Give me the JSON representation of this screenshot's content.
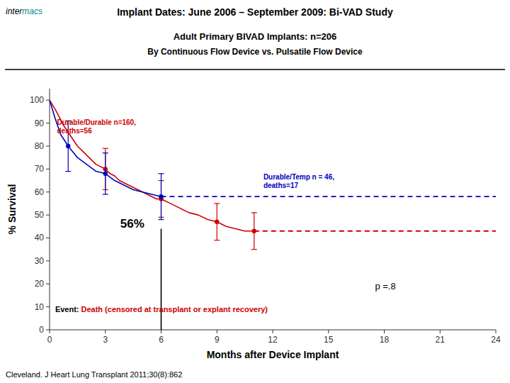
{
  "chart_data": {
    "type": "line",
    "title": "Implant Dates:  June 2006 – September 2009: Bi-VAD Study",
    "subtitle": [
      "Adult Primary BIVAD Implants: n=206",
      "By Continuous Flow Device vs. Pulsatile Flow Device"
    ],
    "x_label": "Months after Device Implant",
    "y_label": "% Survival",
    "xlim": [
      0,
      24
    ],
    "ylim": [
      0,
      105
    ],
    "xticks": [
      0,
      3,
      6,
      9,
      12,
      15,
      18,
      21,
      24
    ],
    "yticks": [
      0,
      10,
      20,
      30,
      40,
      50,
      60,
      70,
      80,
      90,
      100
    ],
    "grid": false,
    "series": [
      {
        "type": "line",
        "color": "#cc0000",
        "x": [
          0,
          0.15,
          0.3,
          0.5,
          0.75,
          1,
          1.25,
          1.5,
          1.75,
          2,
          2.25,
          2.5,
          2.75,
          3,
          3.25,
          3.5,
          3.75,
          4,
          4.25,
          4.5,
          4.75,
          5,
          5.25,
          5.5,
          5.75,
          6,
          6.5,
          7,
          7.5,
          8,
          8.5,
          9,
          9.5,
          10,
          10.5,
          11
        ],
        "values": [
          100,
          98,
          96,
          93,
          89,
          86,
          83,
          80,
          78,
          76,
          74,
          72,
          71,
          70,
          68,
          67,
          65,
          64,
          63,
          62,
          61,
          60,
          59,
          58,
          57,
          57,
          55,
          53,
          51,
          50,
          48,
          47,
          45,
          44,
          43,
          43
        ]
      },
      {
        "type": "scatter",
        "color": "#cc0000",
        "marker": "circle",
        "x": [
          3,
          6,
          9,
          11
        ],
        "values": [
          70,
          57,
          47,
          43
        ],
        "error_low": [
          9,
          8,
          8,
          8
        ],
        "error_high": [
          9,
          8,
          8,
          8
        ]
      },
      {
        "type": "line",
        "color": "#0000bb",
        "x": [
          0,
          0.3,
          0.6,
          1,
          1.5,
          2,
          2.5,
          3,
          3.5,
          4,
          4.5,
          5,
          5.5,
          6
        ],
        "values": [
          100,
          92,
          85,
          80,
          75,
          72,
          69,
          68,
          65,
          63,
          61,
          60,
          59,
          58
        ]
      },
      {
        "type": "scatter",
        "color": "#0000bb",
        "marker": "circle",
        "x": [
          1,
          3,
          6
        ],
        "values": [
          80,
          68,
          58
        ],
        "error_low": [
          11,
          9,
          10
        ],
        "error_high": [
          11,
          9,
          10
        ]
      },
      {
        "type": "line",
        "color": "#0000bb",
        "line_style": "dashed",
        "x": [
          6,
          24
        ],
        "values": [
          58,
          58
        ]
      },
      {
        "type": "line",
        "color": "#cc0000",
        "line_style": "dashed",
        "x": [
          11,
          24
        ],
        "values": [
          43,
          43
        ]
      },
      {
        "type": "line",
        "color": "#000000",
        "x": [
          6.0,
          6.0
        ],
        "values": [
          0,
          44
        ]
      }
    ],
    "annotations": [
      {
        "text": "Durable/Durable n=160,\ndeaths=56",
        "color": "#cc0000"
      },
      {
        "text": "Durable/Temp n = 46,\ndeaths=17",
        "color": "#0000bb"
      },
      {
        "text": "56%",
        "color": "#000000"
      },
      {
        "text": "p =.8",
        "color": "#000000"
      },
      {
        "text": "Event: ",
        "color": "#000000"
      },
      {
        "text": "Death (censored at transplant or explant recovery)",
        "color": "#cc0000"
      },
      {
        "text": "inter",
        "color": "#000000"
      },
      {
        "text": "macs",
        "color": "#008B8B"
      }
    ],
    "source": "Cleveland. J Heart Lung Transplant 2011;30(8):862"
  }
}
